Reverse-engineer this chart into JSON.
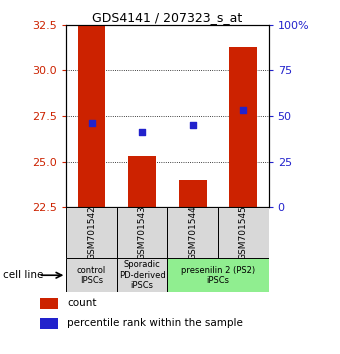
{
  "title": "GDS4141 / 207323_s_at",
  "samples": [
    "GSM701542",
    "GSM701543",
    "GSM701544",
    "GSM701545"
  ],
  "red_values": [
    32.5,
    25.3,
    24.0,
    31.3
  ],
  "blue_pct": [
    46,
    41,
    45,
    53
  ],
  "ylim_left": [
    22.5,
    32.5
  ],
  "ylim_right": [
    0,
    100
  ],
  "yticks_left": [
    22.5,
    25.0,
    27.5,
    30.0,
    32.5
  ],
  "yticks_right": [
    0,
    25,
    50,
    75,
    100
  ],
  "ytick_right_labels": [
    "0",
    "25",
    "50",
    "75",
    "100%"
  ],
  "bar_bottom": 22.5,
  "groups": [
    {
      "label": "control\nIPSCs",
      "span": [
        0,
        1
      ],
      "color": "#d8d8d8"
    },
    {
      "label": "Sporadic\nPD-derived\niPSCs",
      "span": [
        1,
        2
      ],
      "color": "#d8d8d8"
    },
    {
      "label": "presenilin 2 (PS2)\niPSCs",
      "span": [
        2,
        4
      ],
      "color": "#90ee90"
    }
  ],
  "red_color": "#cc2200",
  "blue_color": "#2222cc",
  "bar_width": 0.55,
  "legend_red": "count",
  "legend_blue": "percentile rank within the sample",
  "cell_line_label": "cell line",
  "grid_yticks": [
    25.0,
    27.5,
    30.0
  ],
  "left_tick_color": "#cc2200",
  "right_tick_color": "#2222cc"
}
